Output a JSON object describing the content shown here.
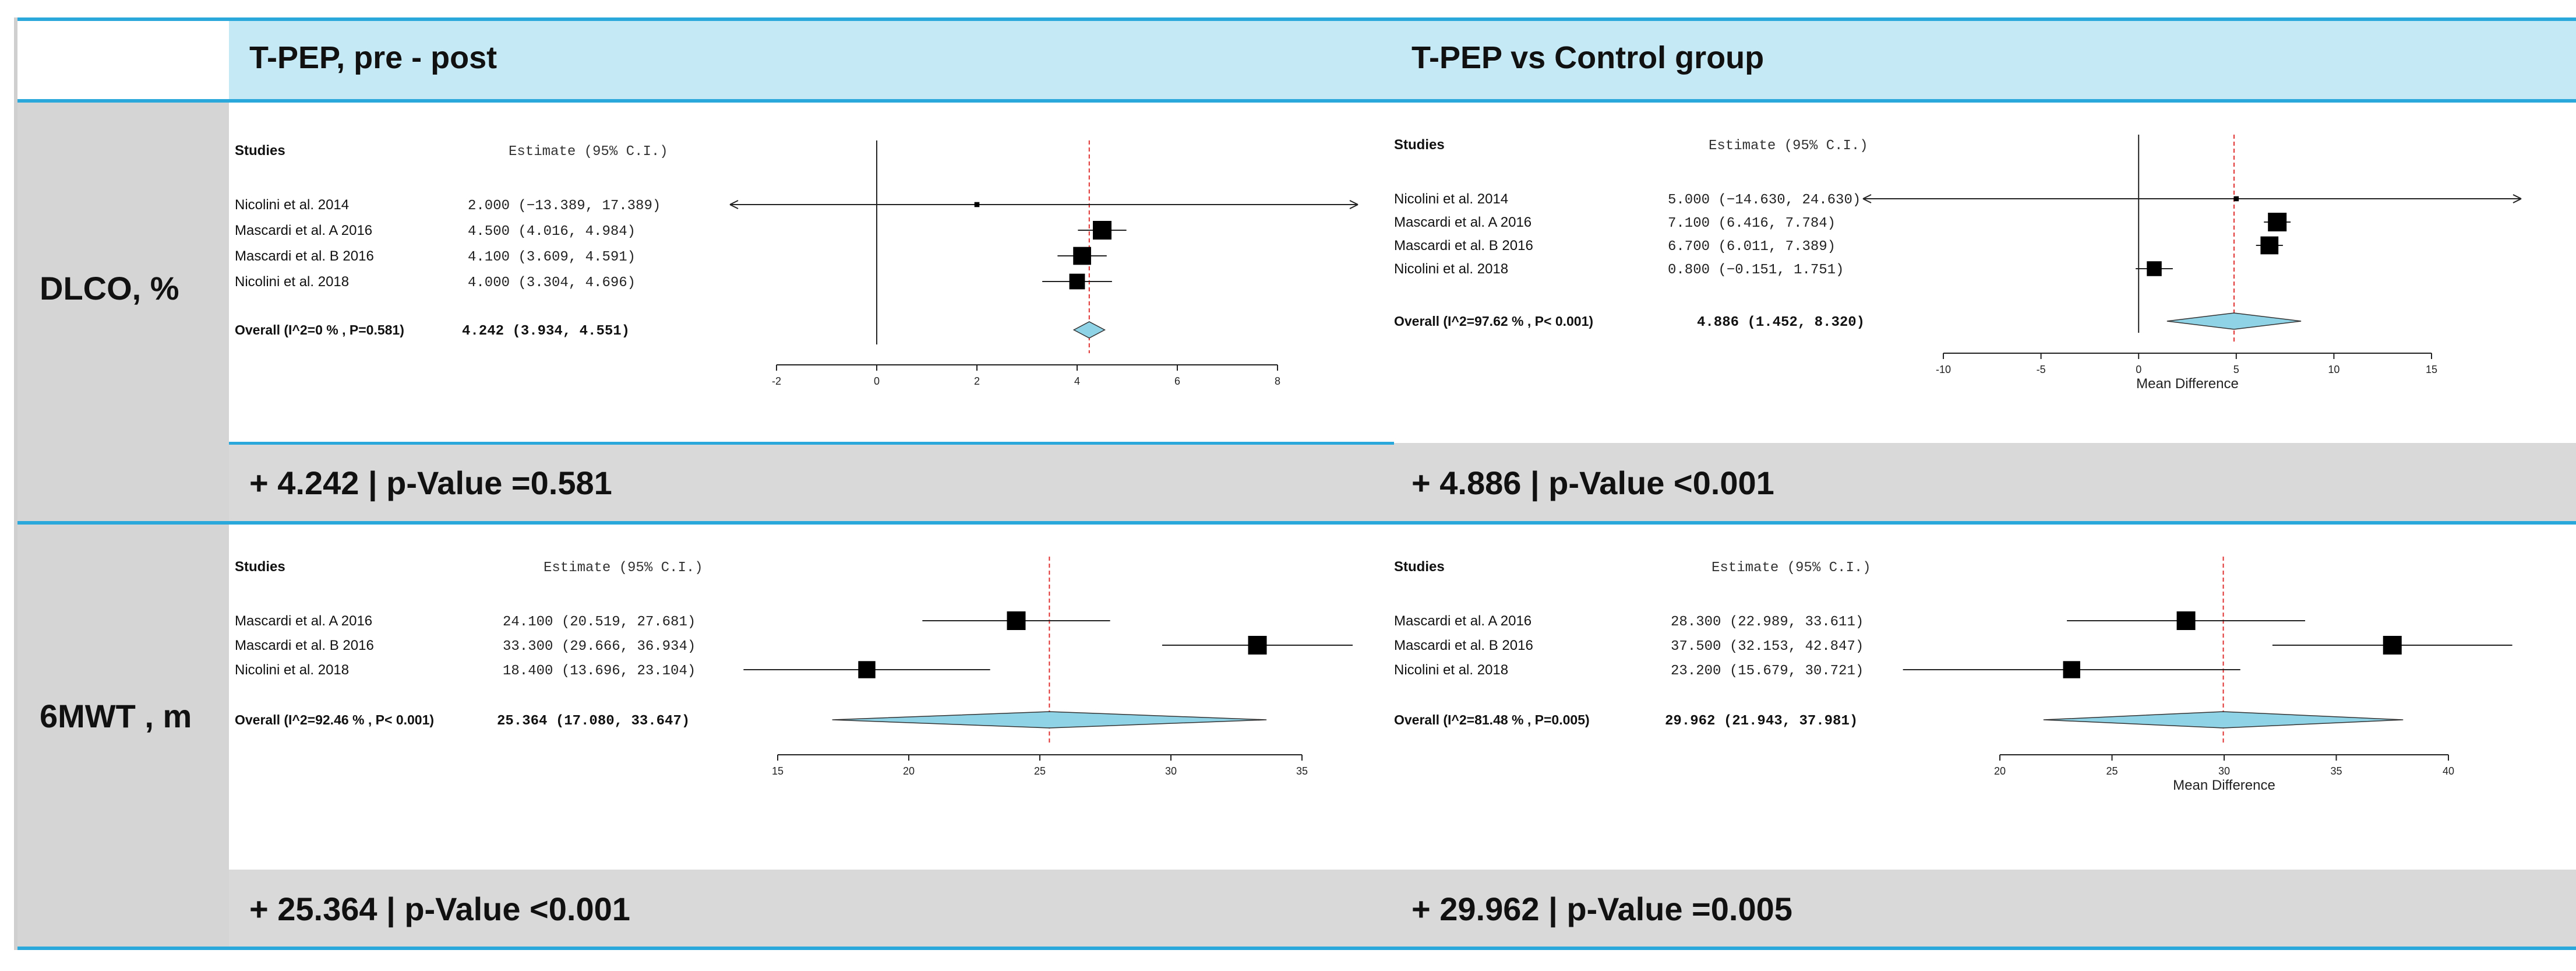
{
  "headers": {
    "col1": "T-PEP, pre - post",
    "col2": "T-PEP vs Control group"
  },
  "rows": {
    "dlco": "DLCO, %",
    "mwt": "6MWT , m"
  },
  "results": {
    "dlco_pre_post": "+ 4.242 | p-Value =0.581",
    "dlco_vs_control": "+ 4.886 | p-Value <0.001",
    "mwt_pre_post": "+ 25.364 | p-Value <0.001",
    "mwt_vs_control": "+ 29.962 | p-Value =0.005"
  },
  "colors": {
    "accent_blue": "#2aa8dc",
    "header_band": "#c5eaf5",
    "grey_band": "#d9d9d9",
    "diamond_fill": "#8fd3e6",
    "ref_line": "#e03030"
  },
  "chart_data": [
    {
      "id": "dlco_pre_post",
      "type": "forest",
      "studies_label": "Studies",
      "estimate_label": "Estimate (95% C.I.)",
      "xlabel": "",
      "xlim": [
        -2,
        8
      ],
      "xticks": [
        -2,
        0,
        2,
        4,
        6,
        8
      ],
      "xticklabels": [
        "-2",
        "0",
        "2",
        "4",
        "6",
        "8"
      ],
      "studies": [
        {
          "name": "Nicolini et al. 2014",
          "ci_text": "2.000 (−13.389, 17.389)",
          "est": 2.0,
          "lo": -13.389,
          "hi": 17.389,
          "weight": 0.1
        },
        {
          "name": "Mascardi et al. A 2016",
          "ci_text": "4.500   (4.016,  4.984)",
          "est": 4.5,
          "lo": 4.016,
          "hi": 4.984,
          "weight": 1.0
        },
        {
          "name": "Mascardi et al. B 2016",
          "ci_text": "4.100   (3.609,  4.591)",
          "est": 4.1,
          "lo": 3.609,
          "hi": 4.591,
          "weight": 0.95
        },
        {
          "name": "Nicolini et al.  2018",
          "ci_text": "4.000   (3.304,  4.696)",
          "est": 4.0,
          "lo": 3.304,
          "hi": 4.696,
          "weight": 0.8
        }
      ],
      "overall": {
        "name": "Overall (I^2=0 % , P=0.581)",
        "ci_text": "4.242   (3.934,  4.551)",
        "est": 4.242,
        "lo": 3.934,
        "hi": 4.551
      }
    },
    {
      "id": "dlco_vs_control",
      "type": "forest",
      "studies_label": "Studies",
      "estimate_label": "Estimate (95% C.I.)",
      "xlabel": "Mean Difference",
      "xlim": [
        -10,
        15
      ],
      "xticks": [
        -10,
        -5,
        0,
        5,
        10,
        15
      ],
      "xticklabels": [
        "-10",
        "-5",
        "0",
        "5",
        "10",
        "15"
      ],
      "studies": [
        {
          "name": "Nicolini et al. 2014",
          "ci_text": "5.000 (−14.630, 24.630)",
          "est": 5.0,
          "lo": -14.63,
          "hi": 24.63,
          "weight": 0.1
        },
        {
          "name": "Mascardi et al. A 2016",
          "ci_text": "7.100   (6.416,  7.784)",
          "est": 7.1,
          "lo": 6.416,
          "hi": 7.784,
          "weight": 1.0
        },
        {
          "name": "Mascardi et al. B 2016",
          "ci_text": "6.700   (6.011,  7.389)",
          "est": 6.7,
          "lo": 6.011,
          "hi": 7.389,
          "weight": 0.95
        },
        {
          "name": "Nicolini et al.  2018",
          "ci_text": "0.800  (−0.151,  1.751)",
          "est": 0.8,
          "lo": -0.151,
          "hi": 1.751,
          "weight": 0.75
        }
      ],
      "overall": {
        "name": "Overall (I^2=97.62 % , P< 0.001)",
        "ci_text": "4.886   (1.452,  8.320)",
        "est": 4.886,
        "lo": 1.452,
        "hi": 8.32
      }
    },
    {
      "id": "mwt_pre_post",
      "type": "forest",
      "studies_label": "Studies",
      "estimate_label": "Estimate (95% C.I.)",
      "xlabel": "",
      "xlim": [
        15,
        35
      ],
      "xticks": [
        15,
        20,
        25,
        30,
        35
      ],
      "xticklabels": [
        "15",
        "20",
        "25",
        "30",
        "35"
      ],
      "studies": [
        {
          "name": "Mascardi et al. A 2016",
          "ci_text": "24.100 (20.519, 27.681)",
          "est": 24.1,
          "lo": 20.519,
          "hi": 27.681,
          "weight": 1.0
        },
        {
          "name": "Mascardi et al. B 2016",
          "ci_text": "33.300 (29.666, 36.934)",
          "est": 33.3,
          "lo": 29.666,
          "hi": 36.934,
          "weight": 1.0
        },
        {
          "name": "Nicolini et al.  2018",
          "ci_text": "18.400 (13.696, 23.104)",
          "est": 18.4,
          "lo": 13.696,
          "hi": 23.104,
          "weight": 0.9
        }
      ],
      "overall": {
        "name": "Overall (I^2=92.46 % , P< 0.001)",
        "ci_text": "25.364 (17.080, 33.647)",
        "est": 25.364,
        "lo": 17.08,
        "hi": 33.647
      }
    },
    {
      "id": "mwt_vs_control",
      "type": "forest",
      "studies_label": "Studies",
      "estimate_label": "Estimate (95% C.I.)",
      "xlabel": "Mean Difference",
      "xlim": [
        20,
        40
      ],
      "xticks": [
        20,
        25,
        30,
        35,
        40
      ],
      "xticklabels": [
        "20",
        "25",
        "30",
        "35",
        "40"
      ],
      "studies": [
        {
          "name": "Mascardi et al. A 2016",
          "ci_text": "28.300 (22.989, 33.611)",
          "est": 28.3,
          "lo": 22.989,
          "hi": 33.611,
          "weight": 1.0
        },
        {
          "name": "Mascardi et al. B 2016",
          "ci_text": "37.500 (32.153, 42.847)",
          "est": 37.5,
          "lo": 32.153,
          "hi": 42.847,
          "weight": 1.0
        },
        {
          "name": "Nicolini et al.  2018",
          "ci_text": "23.200 (15.679, 30.721)",
          "est": 23.2,
          "lo": 15.679,
          "hi": 30.721,
          "weight": 0.9
        }
      ],
      "overall": {
        "name": "Overall (I^2=81.48 % , P=0.005)",
        "ci_text": "29.962 (21.943, 37.981)",
        "est": 29.962,
        "lo": 21.943,
        "hi": 37.981
      }
    }
  ]
}
